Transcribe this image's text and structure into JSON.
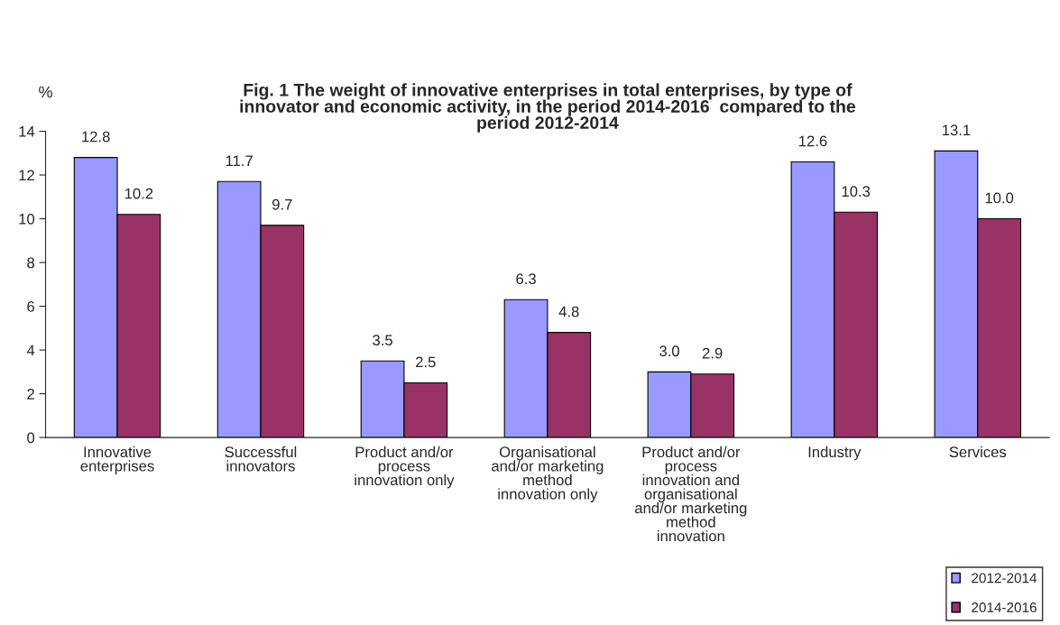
{
  "chart_data": {
    "type": "bar",
    "title": "Fig. 1 The weight of innovative enterprises in total enterprises, by type of\ninnovator and economic activity, in the period 2014-2016  compared to the\nperiod 2012-2014",
    "ylabel": "%",
    "categories": [
      "Innovative\nenterprises",
      "Successful\ninnovators",
      "Product and/or\nprocess\ninnovation only",
      "Organisational\nand/or marketing\nmethod\ninnovation only",
      "Product and/or\nprocess\ninnovation and\norganisational\nand/or marketing\nmethod\ninnovation",
      "Industry",
      "Services"
    ],
    "series": [
      {
        "name": "2012-2014",
        "color": "#9999ff",
        "values": [
          12.8,
          11.7,
          3.5,
          6.3,
          3.0,
          12.6,
          13.1
        ],
        "value_labels": [
          "12.8",
          "11.7",
          "3.5",
          "6.3",
          "3.0",
          "12.6",
          "13.1"
        ]
      },
      {
        "name": "2014-2016",
        "color": "#993366",
        "values": [
          10.2,
          9.7,
          2.5,
          4.8,
          2.9,
          10.3,
          10.0
        ],
        "value_labels": [
          "10.2",
          "9.7",
          "2.5",
          "4.8",
          "2.9",
          "10.3",
          "10.0"
        ]
      }
    ],
    "ylim": [
      0,
      14
    ],
    "yticks": [
      0,
      2,
      4,
      6,
      8,
      10,
      12,
      14
    ],
    "grid": false,
    "legend": "bottom right"
  }
}
